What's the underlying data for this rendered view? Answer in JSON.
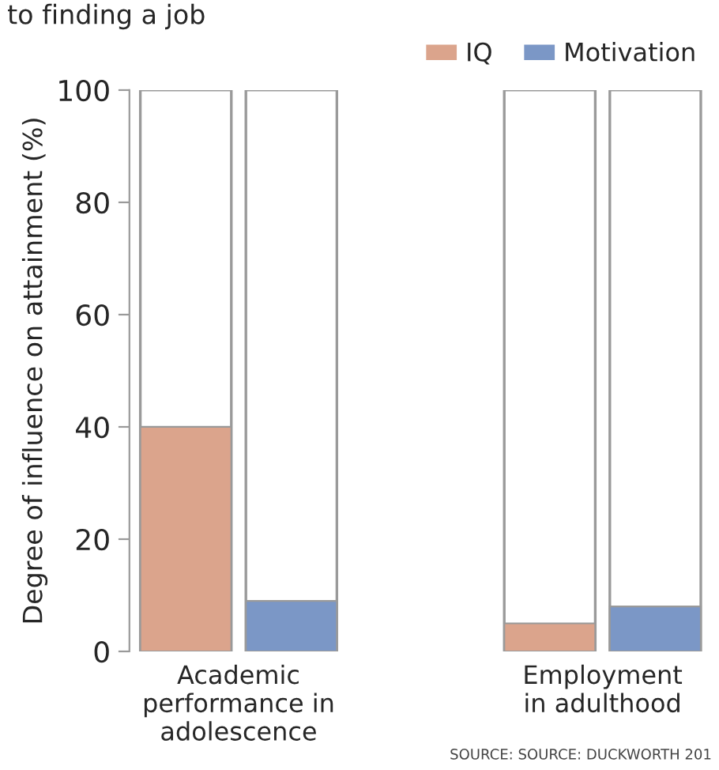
{
  "chart_data": {
    "type": "bar",
    "title": "to finding a job",
    "ylabel": "Degree of influence on attainment (%)",
    "categories": [
      "Academic\nperformance in\nadolescence",
      "Employment\nin adulthood"
    ],
    "series": [
      {
        "name": "IQ",
        "color": "#dba48c",
        "values": [
          40,
          5
        ]
      },
      {
        "name": "Motivation",
        "color": "#7b97c6",
        "values": [
          9,
          8
        ]
      }
    ],
    "ylim": [
      0,
      100
    ],
    "yticks": [
      0,
      20,
      40,
      60,
      80,
      100
    ],
    "legend": "top right",
    "grid": false,
    "annotations": [
      "SOURCE: SOURCE: DUCKWORTH 201"
    ]
  }
}
